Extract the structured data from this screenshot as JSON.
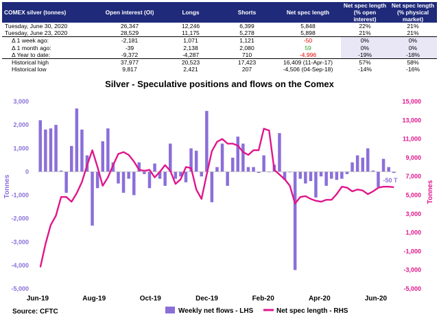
{
  "table": {
    "headers": [
      "COMEX silver (tonnes)",
      "Open interest (OI)",
      "Longs",
      "Shorts",
      "Net spec length",
      "Net spec length (% open interest)",
      "Net spec length (% physical market)"
    ],
    "rows": [
      {
        "label": "Tuesday, June 30, 2020",
        "oi": "26,347",
        "longs": "12,246",
        "shorts": "6,399",
        "net": "5,848",
        "pct_oi": "22%",
        "pct_phys": "21%"
      },
      {
        "label": "Tuesday, June 23, 2020",
        "oi": "28,529",
        "longs": "11,175",
        "shorts": "5,278",
        "net": "5,898",
        "pct_oi": "21%",
        "pct_phys": "21%"
      },
      {
        "label": "Δ 1 week ago:",
        "oi": "-2,181",
        "longs": "1,071",
        "shorts": "1,121",
        "net": "-50",
        "pct_oi": "0%",
        "pct_phys": "0%"
      },
      {
        "label": "Δ 1 month ago:",
        "oi": "-39",
        "longs": "2,138",
        "shorts": "2,080",
        "net": "59",
        "pct_oi": "0%",
        "pct_phys": "0%"
      },
      {
        "label": "Δ Year to date:",
        "oi": "-9,372",
        "longs": "-4,287",
        "shorts": "710",
        "net": "-4,996",
        "pct_oi": "-19%",
        "pct_phys": "-18%"
      },
      {
        "label": "Historical high",
        "oi": "37,977",
        "longs": "20,523",
        "shorts": "17,423",
        "net": "16,409",
        "net_date": "(11-Apr-17)",
        "pct_oi": "57%",
        "pct_phys": "58%"
      },
      {
        "label": "Historical low",
        "oi": "9,817",
        "longs": "2,421",
        "shorts": "207",
        "net": "-4,506",
        "net_date": "(04-Sep-18)",
        "pct_oi": "-14%",
        "pct_phys": "-16%"
      }
    ]
  },
  "chart_data": {
    "type": "bar",
    "title": "Silver - Speculative positions and flows on the Comex",
    "ylabel_left": "Tonnes",
    "ylabel_right": "Tonnes",
    "ylim_left": [
      -5000,
      3000
    ],
    "ylim_right": [
      -5000,
      15000
    ],
    "left_ticks": [
      "3,000",
      "2,000",
      "1,000",
      "0",
      "-1,000",
      "-2,000",
      "-3,000",
      "-4,000",
      "-5,000"
    ],
    "right_ticks": [
      "15,000",
      "13,000",
      "11,000",
      "9,000",
      "7,000",
      "5,000",
      "3,000",
      "1,000",
      "-1,000",
      "-3,000",
      "-5,000"
    ],
    "x_labels": [
      "Jun-19",
      "Aug-19",
      "Oct-19",
      "Dec-19",
      "Feb-20",
      "Apr-20",
      "Jun-20"
    ],
    "grid": false,
    "legend_position": "bottom",
    "series": [
      {
        "name": "Weekly net flows - LHS",
        "kind": "bar",
        "axis": "left",
        "color": "#8b6fd9",
        "values": [
          2200,
          1800,
          1850,
          2000,
          50,
          -900,
          1100,
          2700,
          1800,
          700,
          -2300,
          -700,
          1300,
          1850,
          400,
          -500,
          -900,
          -300,
          -1000,
          400,
          -100,
          -700,
          350,
          -300,
          -600,
          1200,
          -300,
          -200,
          -450,
          1000,
          900,
          -200,
          2600,
          -1300,
          200,
          1200,
          -600,
          600,
          1500,
          1200,
          200,
          200,
          -50,
          700,
          0,
          300,
          1650,
          -350,
          0,
          -4200,
          -300,
          -500,
          -400,
          -1100,
          -200,
          -600,
          -300,
          -350,
          -300,
          -100,
          400,
          700,
          600,
          1000,
          50,
          -650,
          550,
          200,
          -50
        ]
      },
      {
        "name": "Net spec length - RHS",
        "kind": "line",
        "axis": "right",
        "color": "#e0158c",
        "values": [
          -2700,
          -200,
          1800,
          2800,
          4800,
          4800,
          4300,
          5200,
          6400,
          8200,
          9800,
          8000,
          6000,
          6900,
          8200,
          9400,
          9600,
          9300,
          8600,
          7700,
          7600,
          7700,
          6900,
          7500,
          8200,
          7600,
          6200,
          6700,
          8000,
          7900,
          5600,
          4600,
          7200,
          9700,
          10700,
          11000,
          10500,
          10500,
          10300,
          9600,
          9300,
          9800,
          9800,
          12100,
          11900,
          7700,
          7200,
          6700,
          6000,
          4100,
          4800,
          4900,
          4600,
          4400,
          4300,
          4500,
          4500,
          5100,
          5900,
          5800,
          5400,
          5600,
          5500,
          5100,
          5400,
          5800,
          5900,
          5900,
          5848
        ]
      }
    ],
    "annotation": "-50 T"
  }
}
